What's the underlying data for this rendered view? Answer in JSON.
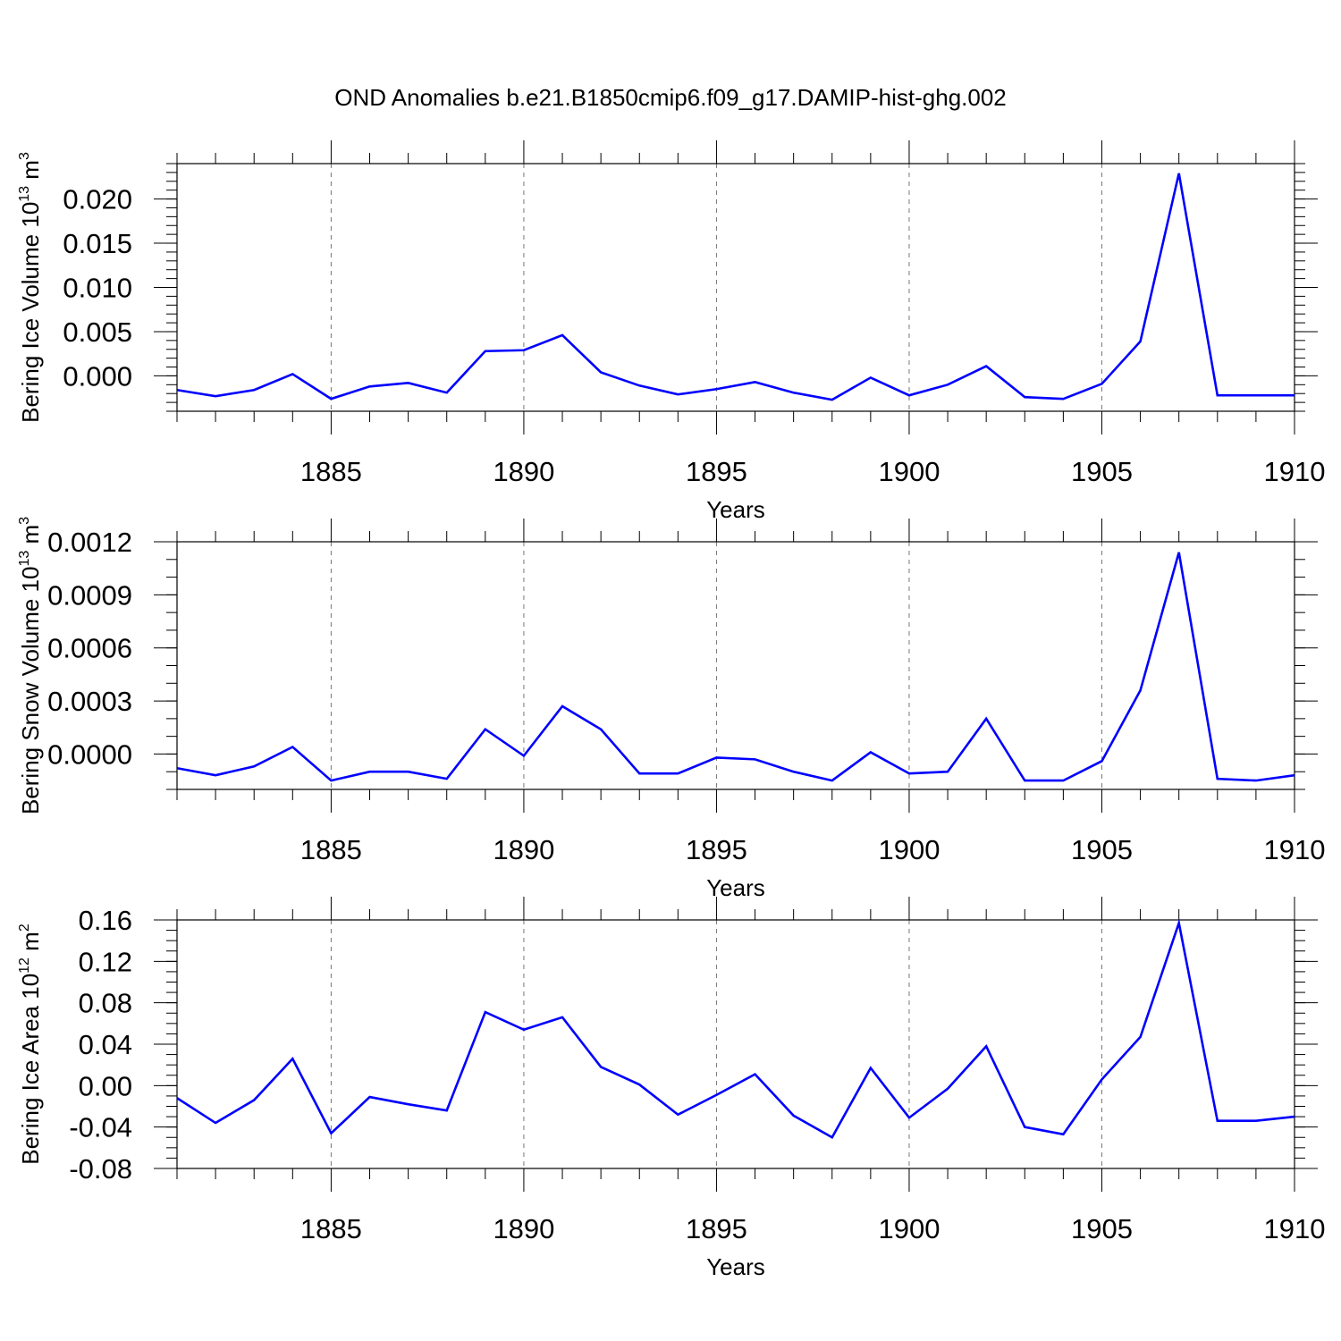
{
  "colors": {
    "series": "#0000ff",
    "axis": "#000000",
    "grid": "#777777"
  },
  "chart_data": {
    "type": "line",
    "title": "OND Anomalies b.e21.B1850cmip6.f09_g17.DAMIP-hist-ghg.002",
    "x": [
      1881,
      1882,
      1883,
      1884,
      1885,
      1886,
      1887,
      1888,
      1889,
      1890,
      1891,
      1892,
      1893,
      1894,
      1895,
      1896,
      1897,
      1898,
      1899,
      1900,
      1901,
      1902,
      1903,
      1904,
      1905,
      1906,
      1907,
      1908,
      1909,
      1910
    ],
    "xlim": [
      1881,
      1910
    ],
    "xticks": [
      1885,
      1890,
      1895,
      1900,
      1905,
      1910
    ],
    "xtick_labels": [
      "1885",
      "1890",
      "1895",
      "1900",
      "1905",
      "1910"
    ],
    "panels": [
      {
        "name": "ice-volume",
        "ylabel_main": "Bering Ice Volume 10",
        "ylabel_sup": "13",
        "ylabel_unit": " m",
        "ylabel_unit_sup": "3",
        "xlabel": "Years",
        "ylim": [
          -0.004,
          0.024
        ],
        "yticks": [
          0.0,
          0.005,
          0.01,
          0.015,
          0.02
        ],
        "ytick_labels": [
          "0.000",
          "0.005",
          "0.010",
          "0.015",
          "0.020"
        ],
        "minor_step": 0.001,
        "values": [
          -0.0016,
          -0.0023,
          -0.0016,
          0.0002,
          -0.0026,
          -0.0012,
          -0.0008,
          -0.0019,
          0.0028,
          0.0029,
          0.0046,
          0.0004,
          -0.0011,
          -0.0021,
          -0.0015,
          -0.0007,
          -0.0019,
          -0.0027,
          -0.0002,
          -0.0022,
          -0.001,
          0.0011,
          -0.0024,
          -0.0026,
          -0.0009,
          0.0039,
          0.0229,
          -0.0022,
          -0.0022,
          -0.0022
        ]
      },
      {
        "name": "snow-volume",
        "ylabel_main": "Bering Snow Volume 10",
        "ylabel_sup": "13",
        "ylabel_unit": " m",
        "ylabel_unit_sup": "3",
        "xlabel": "Years",
        "ylim": [
          -0.0002,
          0.0012
        ],
        "yticks": [
          0.0,
          0.0003,
          0.0006,
          0.0009,
          0.0012
        ],
        "ytick_labels": [
          "0.0000",
          "0.0003",
          "0.0006",
          "0.0009",
          "0.0012"
        ],
        "minor_step": 0.0001,
        "values": [
          -8e-05,
          -0.00012,
          -7e-05,
          4e-05,
          -0.00015,
          -0.0001,
          -0.0001,
          -0.00014,
          0.00014,
          -1e-05,
          0.00027,
          0.00014,
          -0.00011,
          -0.00011,
          -2e-05,
          -3e-05,
          -0.0001,
          -0.00015,
          1e-05,
          -0.00011,
          -0.0001,
          0.0002,
          -0.00015,
          -0.00015,
          -4e-05,
          0.00036,
          0.00114,
          -0.00014,
          -0.00015,
          -0.00012
        ]
      },
      {
        "name": "ice-area",
        "ylabel_main": "Bering Ice Area 10",
        "ylabel_sup": "12",
        "ylabel_unit": " m",
        "ylabel_unit_sup": "2",
        "xlabel": "Years",
        "ylim": [
          -0.08,
          0.16
        ],
        "yticks": [
          -0.08,
          -0.04,
          0.0,
          0.04,
          0.08,
          0.12,
          0.16
        ],
        "ytick_labels": [
          "-0.08",
          "-0.04",
          "0.00",
          "0.04",
          "0.08",
          "0.12",
          "0.16"
        ],
        "minor_step": 0.01,
        "values": [
          -0.012,
          -0.036,
          -0.014,
          0.026,
          -0.046,
          -0.011,
          -0.018,
          -0.024,
          0.071,
          0.054,
          0.066,
          0.018,
          0.001,
          -0.028,
          -0.009,
          0.011,
          -0.029,
          -0.05,
          0.017,
          -0.031,
          -0.003,
          0.038,
          -0.04,
          -0.047,
          0.006,
          0.047,
          0.157,
          -0.034,
          -0.034,
          -0.03
        ]
      }
    ]
  }
}
